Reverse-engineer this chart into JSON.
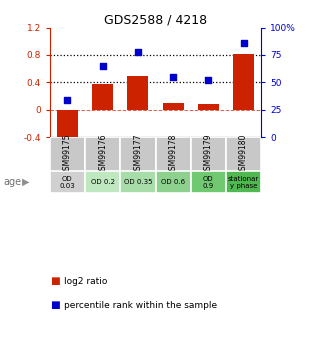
{
  "title": "GDS2588 / 4218",
  "samples": [
    "GSM99175",
    "GSM99176",
    "GSM99177",
    "GSM99178",
    "GSM99179",
    "GSM99180"
  ],
  "log2_ratio": [
    -0.47,
    0.38,
    0.5,
    0.1,
    0.09,
    0.82
  ],
  "percentile_rank": [
    34,
    65,
    78,
    55,
    52,
    86
  ],
  "bar_color": "#cc2200",
  "dot_color": "#0000cc",
  "ylim_left": [
    -0.4,
    1.2
  ],
  "ylim_right": [
    0,
    100
  ],
  "yticks_left": [
    -0.4,
    0.0,
    0.4,
    0.8,
    1.2
  ],
  "ytick_labels_left": [
    "-0.4",
    "0",
    "0.4",
    "0.8",
    "1.2"
  ],
  "yticks_right": [
    0,
    25,
    50,
    75,
    100
  ],
  "ytick_labels_right": [
    "0",
    "25",
    "50",
    "75",
    "100%"
  ],
  "hlines": [
    0.4,
    0.8
  ],
  "age_labels": [
    "OD\n0.03",
    "OD 0.2",
    "OD 0.35",
    "OD 0.6",
    "OD\n0.9",
    "stationar\ny phase"
  ],
  "age_colors": [
    "#d0d0d0",
    "#c0e8c0",
    "#a8dca8",
    "#8ed08e",
    "#70c870",
    "#50b850"
  ],
  "sample_bg_color": "#c8c8c8",
  "legend_bar_label": "log2 ratio",
  "legend_dot_label": "percentile rank within the sample",
  "age_text_color": "#505050",
  "bg_color": "#ffffff"
}
